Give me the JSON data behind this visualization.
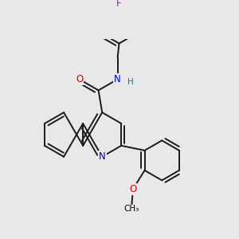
{
  "bg_color": "#e8e8e8",
  "bond_color": "#1a1a1a",
  "bond_width": 1.4,
  "dbo": 0.045,
  "atom_colors": {
    "N": "#0000cc",
    "O": "#cc0000",
    "F": "#cc00cc",
    "H": "#008888"
  },
  "fs": 8.5
}
